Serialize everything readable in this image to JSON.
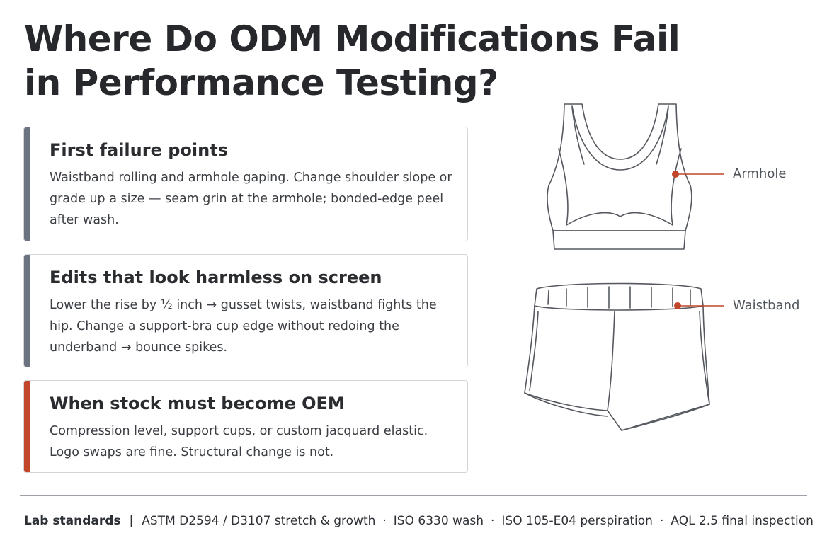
{
  "title": {
    "line1": "Where Do ODM Modifications Fail",
    "line2": "in Performance Testing?"
  },
  "cards": [
    {
      "heading": "First failure points",
      "body": "Waistband rolling and armhole gaping. Change shoulder slope or grade up a size — seam grin at the armhole; bonded-edge peel after wash.",
      "accent": "#6b7380"
    },
    {
      "heading": "Edits that look harmless on screen",
      "body": "Lower the rise by ½ inch → gusset twists, waistband fights the hip. Change a support-bra cup edge without redoing the underband → bounce spikes.",
      "accent": "#6b7380"
    },
    {
      "heading": "When stock must become OEM",
      "body": "Compression level, support cups, or custom jacquard elastic. Logo swaps are fine. Structural change is not.",
      "accent": "#c2462a"
    }
  ],
  "illustration": {
    "callouts": [
      {
        "label": "Armhole",
        "marker_color": "#c2462a"
      },
      {
        "label": "Waistband",
        "marker_color": "#c2462a"
      }
    ]
  },
  "footer": {
    "label": "Lab standards",
    "separator": "|",
    "items": [
      "ASTM D2594 / D3107 stretch & growth",
      "ISO 6330 wash",
      "ISO 105-E04 perspiration",
      "AQL 2.5 final inspection"
    ]
  }
}
